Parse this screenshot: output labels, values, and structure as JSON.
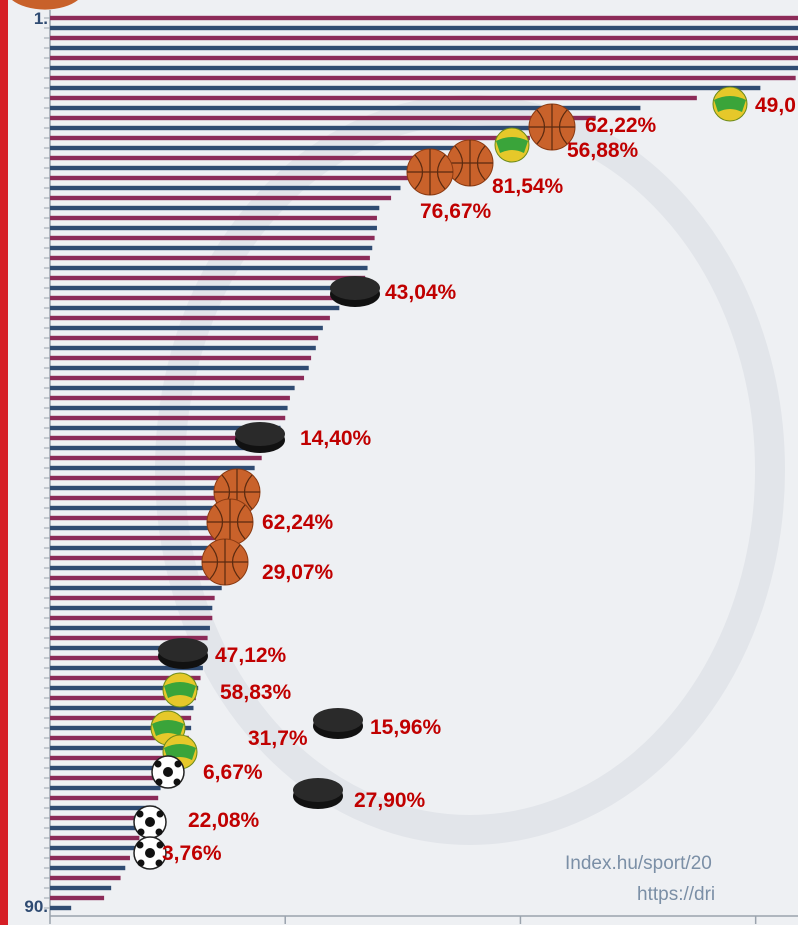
{
  "chart_data": {
    "type": "barh",
    "categories": [
      "1.",
      null,
      null,
      null,
      null,
      null,
      null,
      null,
      null,
      null,
      null,
      null,
      null,
      null,
      null,
      null,
      null,
      null,
      null,
      null,
      null,
      null,
      null,
      null,
      null,
      null,
      null,
      null,
      null,
      null,
      null,
      null,
      null,
      null,
      null,
      null,
      null,
      null,
      null,
      null,
      null,
      null,
      null,
      null,
      null,
      null,
      null,
      null,
      null,
      null,
      null,
      null,
      null,
      null,
      null,
      null,
      null,
      null,
      null,
      null,
      null,
      null,
      null,
      null,
      null,
      null,
      null,
      null,
      null,
      null,
      null,
      null,
      null,
      null,
      null,
      null,
      null,
      null,
      null,
      null,
      null,
      null,
      null,
      null,
      null,
      null,
      null,
      null,
      null,
      "90."
    ],
    "values": [
      330,
      330,
      330,
      330,
      330,
      330,
      317,
      302,
      275,
      251,
      232,
      217,
      204,
      183,
      179,
      170,
      157,
      149,
      145,
      140,
      139,
      139,
      138,
      137,
      136,
      135,
      134,
      132,
      128,
      123,
      119,
      116,
      114,
      113,
      111,
      110,
      108,
      104,
      102,
      101,
      100,
      98,
      96,
      94,
      90,
      87,
      85,
      84,
      83,
      82,
      81,
      79,
      78,
      77,
      76,
      75,
      74,
      73,
      70,
      69,
      69,
      68,
      67,
      66,
      66,
      65,
      64,
      63,
      62,
      61,
      60,
      60,
      59,
      57,
      56,
      54,
      51,
      47,
      46,
      45,
      43,
      40,
      38,
      36,
      34,
      32,
      30,
      26,
      23,
      9
    ],
    "colors": [
      "#8c2b58",
      "#2f4b72"
    ],
    "xlim": [
      0,
      318
    ],
    "xticks": [
      0,
      100,
      200,
      300
    ],
    "annotations": [
      "49,0",
      "62,22%",
      "56,88%",
      "81,54%",
      "76,67%",
      "43,04%",
      "14,40%",
      "62,24%",
      "29,07%",
      "47,12%",
      "58,83%",
      "15,96%",
      "31,7%",
      "6,67%",
      "27,90%",
      "22,08%",
      "3,76%"
    ],
    "source": [
      "Index.hu/sport/20",
      "https://dri"
    ]
  }
}
